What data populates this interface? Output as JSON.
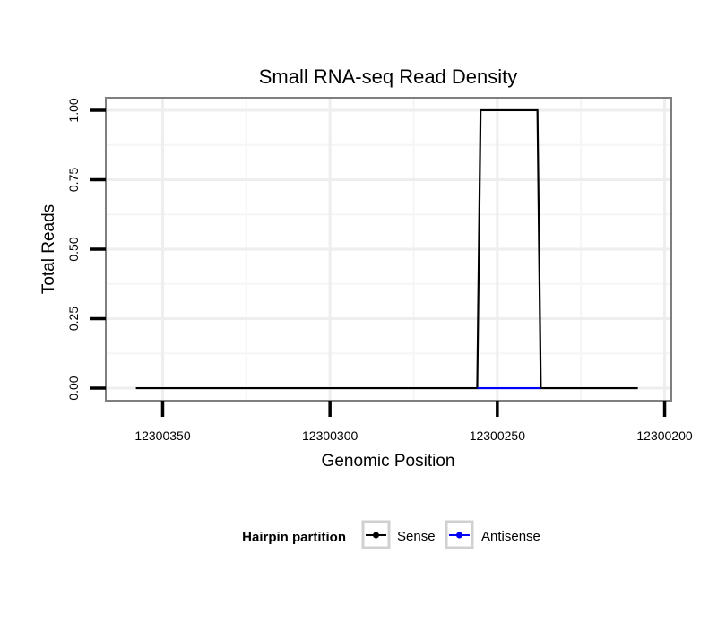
{
  "chart_data": {
    "type": "line",
    "title": "Small RNA-seq Read Density",
    "xlabel": "Genomic Position",
    "ylabel": "Total Reads",
    "x_reversed": true,
    "xlim": [
      12300367,
      12300198
    ],
    "ylim": [
      -0.045,
      1.045
    ],
    "xticks": [
      12300350,
      12300300,
      12300250,
      12300200
    ],
    "xtick_labels": [
      "12300350",
      "12300300",
      "12300250",
      "12300200"
    ],
    "yticks": [
      0.0,
      0.25,
      0.5,
      0.75,
      1.0
    ],
    "ytick_labels": [
      "0.00",
      "0.25",
      "0.50",
      "0.75",
      "1.00"
    ],
    "grid": true,
    "legend": {
      "title": "Hairpin partition",
      "position": "bottom"
    },
    "series": [
      {
        "name": "Sense",
        "color": "#000000",
        "x": [
          12300358,
          12300256,
          12300255,
          12300238,
          12300237,
          12300208
        ],
        "y": [
          0,
          0,
          1,
          1,
          0,
          0
        ]
      },
      {
        "name": "Antisense",
        "color": "#0000ff",
        "x": [
          12300256,
          12300237
        ],
        "y": [
          0,
          0
        ]
      }
    ]
  }
}
